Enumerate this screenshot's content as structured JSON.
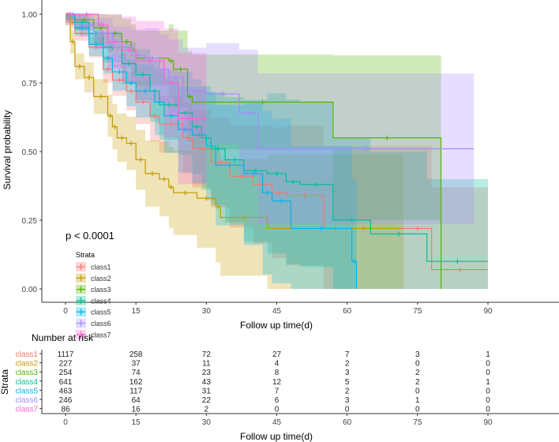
{
  "chart_data": {
    "type": "line",
    "subtype": "kaplan-meier",
    "ylabel": "Survival probability",
    "xlabel": "Follow up time(d)",
    "xlim": [
      0,
      90
    ],
    "ylim": [
      0,
      1
    ],
    "xticks": [
      0,
      15,
      30,
      45,
      60,
      75,
      90
    ],
    "yticks": [
      "0.00",
      "0.25",
      "0.50",
      "0.75",
      "1.00"
    ],
    "yticks_values": [
      0,
      0.25,
      0.5,
      0.75,
      1.0
    ],
    "annotation": "p < 0.0001",
    "legend": {
      "title": "Strata",
      "placement": "bottom-left"
    },
    "series": [
      {
        "name": "class1",
        "color": "#F8766D",
        "ci_halfwidth": [
          0.02,
          0.003
        ],
        "time": [
          0,
          1,
          2,
          5,
          8,
          10,
          13,
          15,
          18,
          20,
          25,
          27,
          31,
          35,
          40,
          44,
          47,
          55,
          72,
          78,
          90
        ],
        "surv": [
          1,
          0.97,
          0.93,
          0.88,
          0.8,
          0.76,
          0.72,
          0.68,
          0.63,
          0.6,
          0.55,
          0.51,
          0.46,
          0.41,
          0.38,
          0.35,
          0.34,
          0.22,
          0.22,
          0.07,
          0.07
        ]
      },
      {
        "name": "class2",
        "color": "#C49A00",
        "ci_halfwidth": [
          0.04,
          0.003
        ],
        "time": [
          0,
          1,
          2,
          4,
          6,
          9,
          10,
          11,
          13,
          15,
          17,
          20,
          22,
          23,
          28,
          32,
          33,
          43,
          72
        ],
        "surv": [
          1,
          0.9,
          0.81,
          0.77,
          0.7,
          0.63,
          0.59,
          0.55,
          0.53,
          0.47,
          0.42,
          0.4,
          0.37,
          0.35,
          0.33,
          0.3,
          0.26,
          0.22,
          0.22
        ]
      },
      {
        "name": "class3",
        "color": "#53B400",
        "ci_halfwidth": [
          0.03,
          0.004
        ],
        "time": [
          0,
          2,
          6,
          9,
          12,
          14,
          15,
          22,
          23,
          26,
          27,
          57,
          80
        ],
        "surv": [
          1,
          0.98,
          0.95,
          0.93,
          0.9,
          0.87,
          0.84,
          0.83,
          0.8,
          0.7,
          0.68,
          0.55,
          0
        ]
      },
      {
        "name": "class4",
        "color": "#00C094",
        "ci_halfwidth": [
          0.02,
          0.004
        ],
        "time": [
          0,
          2,
          5,
          8,
          12,
          15,
          18,
          20,
          24,
          27,
          29,
          31,
          34,
          38,
          43,
          47,
          50,
          57,
          65,
          77,
          90
        ],
        "surv": [
          1,
          0.97,
          0.93,
          0.88,
          0.82,
          0.78,
          0.72,
          0.67,
          0.64,
          0.59,
          0.55,
          0.51,
          0.47,
          0.43,
          0.42,
          0.39,
          0.38,
          0.25,
          0.2,
          0.1,
          0.1
        ]
      },
      {
        "name": "class5",
        "color": "#00B6EB",
        "ci_halfwidth": [
          0.02,
          0.004
        ],
        "time": [
          0,
          2,
          5,
          8,
          10,
          13,
          15,
          19,
          21,
          24,
          27,
          30,
          32,
          38,
          42,
          44,
          48,
          61,
          62
        ],
        "surv": [
          1,
          0.95,
          0.89,
          0.84,
          0.79,
          0.75,
          0.72,
          0.68,
          0.63,
          0.58,
          0.56,
          0.52,
          0.45,
          0.42,
          0.35,
          0.32,
          0.22,
          0.1,
          0
        ]
      },
      {
        "name": "class6",
        "color": "#A58AFF",
        "ci_halfwidth": [
          0.03,
          0.004
        ],
        "time": [
          0,
          3,
          6,
          10,
          14,
          17,
          20,
          22,
          25,
          30,
          37,
          41,
          87
        ],
        "surv": [
          1,
          0.96,
          0.93,
          0.88,
          0.85,
          0.84,
          0.8,
          0.77,
          0.72,
          0.71,
          0.64,
          0.51,
          0.51
        ]
      },
      {
        "name": "class7",
        "color": "#FB61D7",
        "ci_halfwidth": [
          0.04,
          0.006
        ],
        "time": [
          0,
          2,
          7,
          9,
          12,
          15,
          21,
          24,
          30
        ],
        "surv": [
          1,
          1,
          0.96,
          0.9,
          0.87,
          0.83,
          0.75,
          0.62,
          0.62
        ]
      }
    ],
    "risk_table": {
      "title": "Number at risk",
      "ylabel": "Strata",
      "xlabel": "Follow up time(d)",
      "times": [
        0,
        15,
        30,
        45,
        60,
        75,
        90
      ],
      "rows": [
        {
          "name": "class1",
          "values": [
            1117,
            258,
            72,
            27,
            7,
            3,
            1
          ]
        },
        {
          "name": "class2",
          "values": [
            227,
            37,
            11,
            4,
            2,
            0,
            0
          ]
        },
        {
          "name": "class3",
          "values": [
            254,
            74,
            23,
            8,
            3,
            2,
            0
          ]
        },
        {
          "name": "class4",
          "values": [
            641,
            162,
            43,
            12,
            5,
            2,
            1
          ]
        },
        {
          "name": "class5",
          "values": [
            463,
            117,
            31,
            7,
            2,
            0,
            0
          ]
        },
        {
          "name": "class6",
          "values": [
            246,
            64,
            22,
            6,
            3,
            1,
            0
          ]
        },
        {
          "name": "class7",
          "values": [
            86,
            16,
            2,
            0,
            0,
            0,
            0
          ]
        }
      ]
    }
  }
}
